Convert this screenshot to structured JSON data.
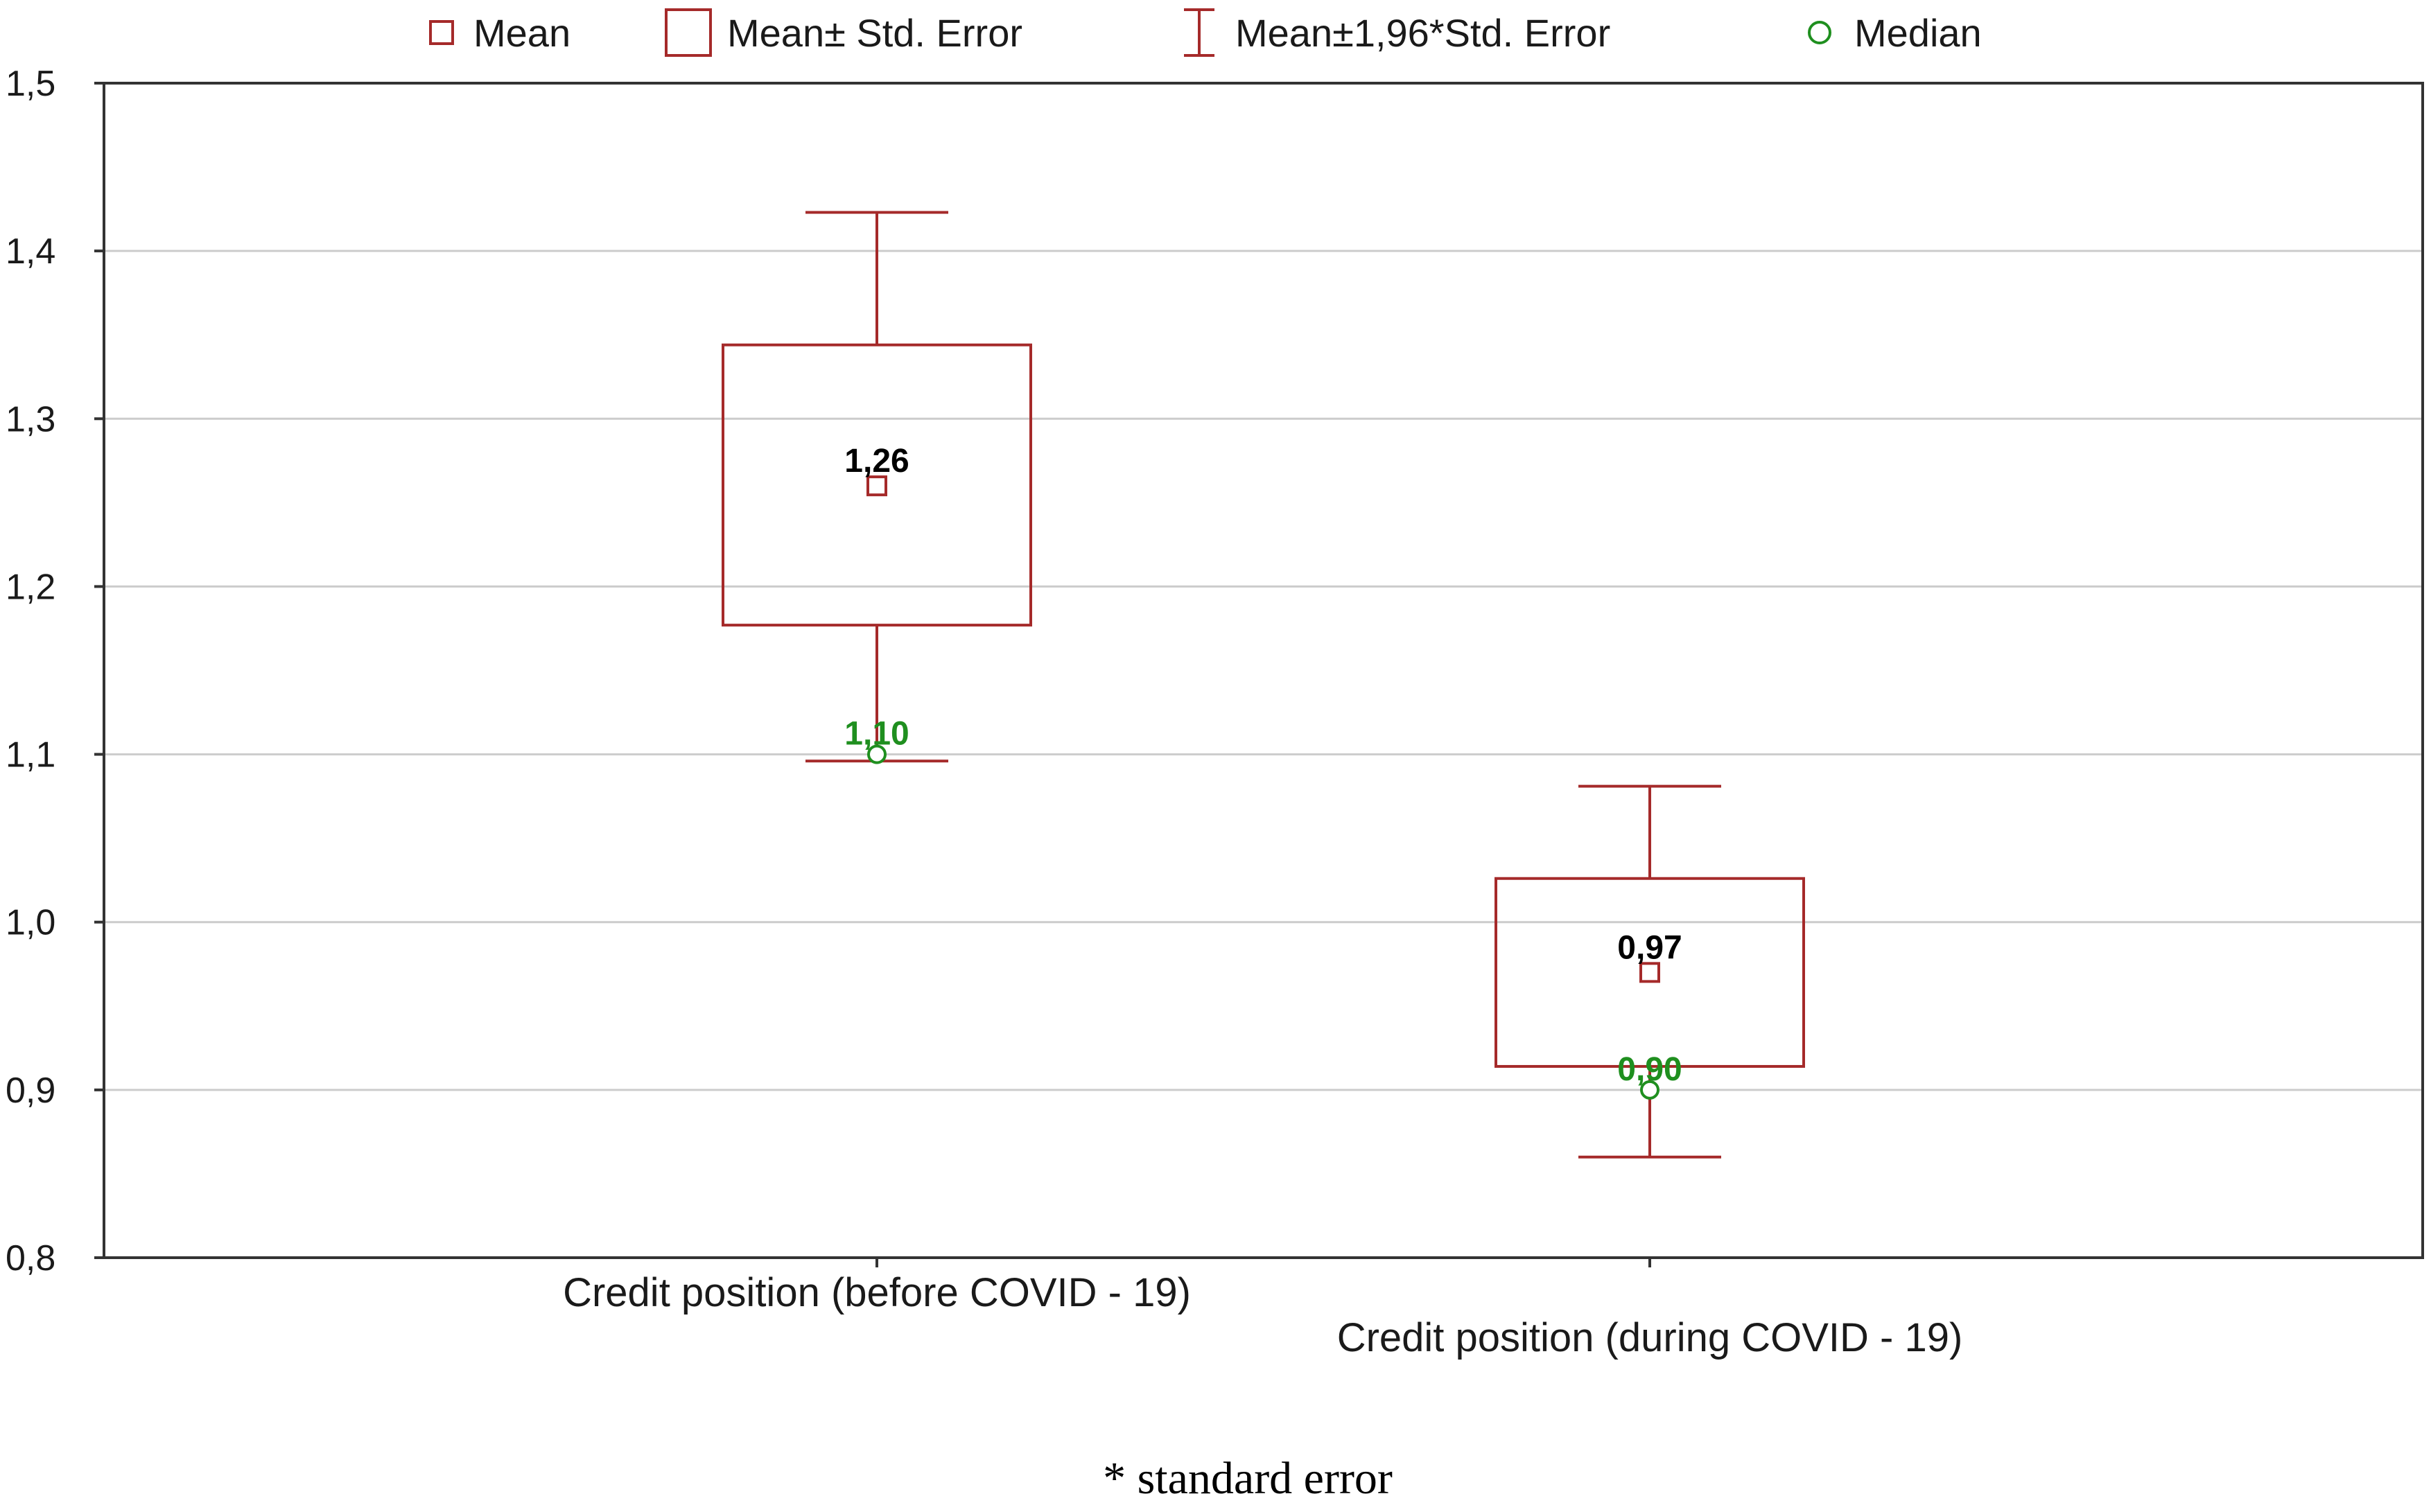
{
  "chart_data": {
    "type": "box",
    "legend": {
      "position": "top",
      "entries": [
        {
          "key": "mean",
          "label": "Mean",
          "color": "#a52a2a"
        },
        {
          "key": "se_box",
          "label": "Mean± Std. Error",
          "color": "#a52a2a"
        },
        {
          "key": "ci_whisker",
          "label": "Mean±1,96*Std. Error",
          "color": "#a52a2a"
        },
        {
          "key": "median",
          "label": "Median",
          "color": "#1f8f1f"
        }
      ]
    },
    "ylim": [
      0.8,
      1.5
    ],
    "yticks": [
      0.8,
      0.9,
      1.0,
      1.1,
      1.2,
      1.3,
      1.4,
      1.5
    ],
    "ytick_labels": [
      "0,8",
      "0,9",
      "1,0",
      "1,1",
      "1,2",
      "1,3",
      "1,4",
      "1,5"
    ],
    "grid": true,
    "categories": [
      "Credit position (before COVID - 19)",
      "Credit position (during COVID - 19)"
    ],
    "series": [
      {
        "name": "Credit position (before COVID - 19)",
        "mean": 1.26,
        "mean_label": "1,26",
        "se_low": 1.177,
        "se_high": 1.344,
        "ci_low": 1.096,
        "ci_high": 1.423,
        "median": 1.1,
        "median_label": "1,10"
      },
      {
        "name": "Credit position (during COVID - 19)",
        "mean": 0.97,
        "mean_label": "0,97",
        "se_low": 0.914,
        "se_high": 1.026,
        "ci_low": 0.86,
        "ci_high": 1.081,
        "median": 0.9,
        "median_label": "0,90"
      }
    ],
    "colors": {
      "primary": "#a52a2a",
      "median": "#1f8f1f",
      "grid": "#cccccc",
      "axis": "#333333"
    }
  },
  "footnote": "* standard error"
}
